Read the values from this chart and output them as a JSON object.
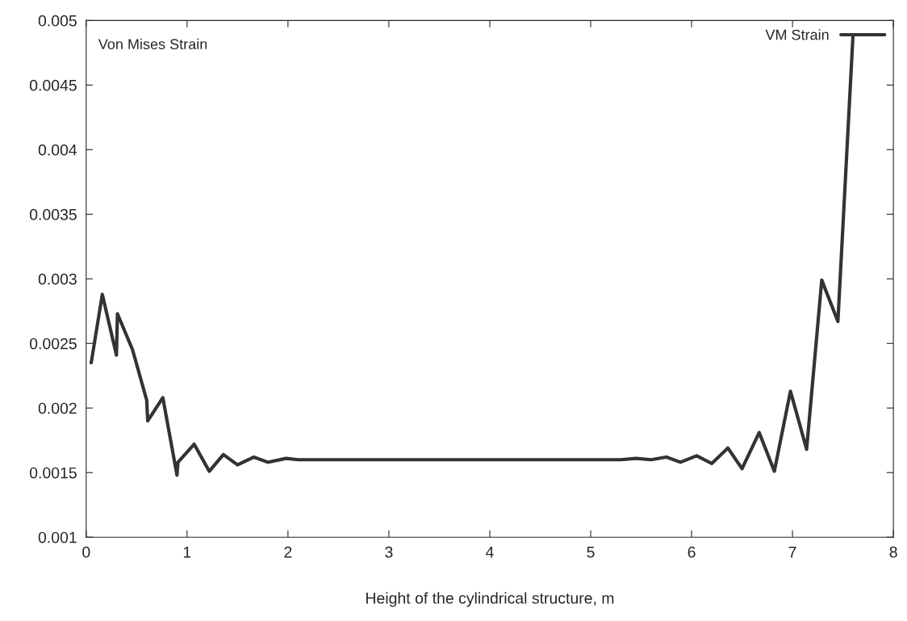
{
  "chart_data": {
    "type": "line",
    "xlabel": "Height of the cylindrical structure, m",
    "annotations": [
      "Von Mises Strain"
    ],
    "x": [
      0.05,
      0.16,
      0.3,
      0.31,
      0.46,
      0.6,
      0.61,
      0.76,
      0.9,
      0.91,
      1.07,
      1.22,
      1.36,
      1.5,
      1.66,
      1.8,
      1.98,
      2.1,
      2.5,
      3.0,
      3.5,
      4.0,
      4.5,
      5.0,
      5.3,
      5.45,
      5.6,
      5.75,
      5.89,
      6.05,
      6.2,
      6.36,
      6.5,
      6.67,
      6.82,
      6.98,
      7.14,
      7.29,
      7.45,
      7.6
    ],
    "series": [
      {
        "name": "VM Strain",
        "color": "#333333",
        "values": [
          0.00235,
          0.00288,
          0.00241,
          0.00273,
          0.00245,
          0.00206,
          0.0019,
          0.00208,
          0.00148,
          0.00158,
          0.00172,
          0.00151,
          0.00164,
          0.00156,
          0.00162,
          0.00158,
          0.00161,
          0.0016,
          0.0016,
          0.0016,
          0.0016,
          0.0016,
          0.0016,
          0.0016,
          0.0016,
          0.00161,
          0.0016,
          0.00162,
          0.00158,
          0.00163,
          0.00157,
          0.00169,
          0.00153,
          0.00181,
          0.00151,
          0.00213,
          0.00168,
          0.00299,
          0.00267,
          0.00489
        ]
      }
    ],
    "xlim": [
      0,
      8
    ],
    "xticks": [
      0,
      1,
      2,
      3,
      4,
      5,
      6,
      7,
      8
    ],
    "ylim": [
      0.001,
      0.005
    ],
    "yticks": [
      0.001,
      0.0015,
      0.002,
      0.0025,
      0.003,
      0.0035,
      0.004,
      0.0045,
      0.005
    ],
    "grid": false,
    "legend": "top right",
    "marker": "none",
    "line_style": "solid"
  }
}
